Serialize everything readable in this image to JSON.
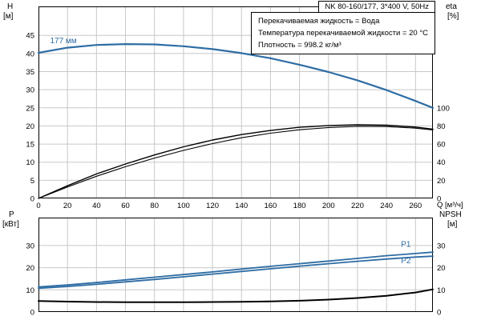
{
  "title_box": "NK 80-160/177, 3*400 V, 50Hz",
  "info_box": {
    "line1": "Перекачиваемая жидкость = Вода",
    "line2": "Температура перекачиваемой жидкости = 20 °C",
    "line3": "Плотность = 998.2 кг/м³"
  },
  "axes_labels": {
    "top_left_1": "H",
    "top_left_2": "[м]",
    "top_right_1": "eta",
    "top_right_2": "[%]",
    "x_label": "Q [м³/ч]",
    "bottom_left_1": "P",
    "bottom_left_2": "[кВт]",
    "bottom_right_1": "NPSH",
    "bottom_right_2": "[м]"
  },
  "colors": {
    "curve_blue": "#2e6da4",
    "curve_black": "#000000",
    "grid": "#c8c8c8",
    "axis": "#000000"
  },
  "chart_data": [
    {
      "type": "line",
      "title": "Q-H curve and efficiency",
      "xlabel": "Q [м³/ч]",
      "xlim": [
        0,
        272
      ],
      "x_ticks": [
        0,
        20,
        40,
        60,
        80,
        100,
        120,
        140,
        160,
        180,
        200,
        220,
        240,
        260
      ],
      "show_x_tick_labels": true,
      "grid": true,
      "y_left": {
        "name": "H [м]",
        "lim": [
          0,
          53
        ],
        "ticks": [
          0,
          5,
          10,
          15,
          20,
          25,
          30,
          35,
          40,
          45
        ]
      },
      "y_right": {
        "name": "eta [%]",
        "ticks": [
          0,
          20,
          40,
          60,
          80,
          100
        ],
        "to_left": 0.25
      },
      "x_points": [
        0,
        20,
        40,
        60,
        80,
        100,
        120,
        140,
        160,
        180,
        200,
        220,
        240,
        260,
        272
      ],
      "series": [
        {
          "name": "head-177mm",
          "axis": "left",
          "color": "blue",
          "width": 2.2,
          "y": [
            40.2,
            41.6,
            42.35,
            42.6,
            42.5,
            42.0,
            41.2,
            40.1,
            38.7,
            36.9,
            34.9,
            32.6,
            29.9,
            26.9,
            25.0
          ]
        },
        {
          "name": "eta-pump",
          "axis": "right",
          "color": "black",
          "width": 1.4,
          "y": [
            0,
            14,
            27,
            38,
            48,
            57,
            64.5,
            70.5,
            75,
            78.5,
            80.5,
            81.3,
            80.8,
            78.8,
            76.5
          ]
        },
        {
          "name": "eta-pump-motor",
          "axis": "right",
          "color": "black",
          "width": 1.1,
          "y": [
            0,
            12.5,
            24.5,
            35,
            44.5,
            53,
            60.5,
            67,
            72,
            75.8,
            78.3,
            79.5,
            79.3,
            77.6,
            75.5
          ]
        }
      ],
      "curve_labels": [
        {
          "text": "177 мм",
          "x": 8,
          "y": 42.8,
          "color": "blue"
        }
      ]
    },
    {
      "type": "line",
      "title": "Power and NPSH",
      "xlim": [
        0,
        272
      ],
      "x_ticks": [
        0,
        20,
        40,
        60,
        80,
        100,
        120,
        140,
        160,
        180,
        200,
        220,
        240,
        260
      ],
      "show_x_tick_labels": false,
      "grid": true,
      "y_left": {
        "name": "P [кВт]",
        "lim": [
          0,
          42.6
        ],
        "ticks": [
          0,
          10,
          20,
          30
        ]
      },
      "y_right": {
        "name": "NPSH [м]",
        "ticks": [
          0,
          10,
          20,
          30
        ],
        "to_left": 1
      },
      "x_points": [
        0,
        20,
        40,
        60,
        80,
        100,
        120,
        140,
        160,
        180,
        200,
        220,
        240,
        260,
        272
      ],
      "series": [
        {
          "name": "P1",
          "axis": "left",
          "color": "blue",
          "width": 1.8,
          "y": [
            11.3,
            12.2,
            13.3,
            14.5,
            15.7,
            16.9,
            18.1,
            19.4,
            20.6,
            21.8,
            23.0,
            24.2,
            25.4,
            26.4,
            27.0
          ]
        },
        {
          "name": "P2",
          "axis": "left",
          "color": "blue",
          "width": 1.8,
          "y": [
            10.7,
            11.5,
            12.5,
            13.6,
            14.7,
            15.9,
            17.1,
            18.3,
            19.5,
            20.7,
            21.8,
            22.9,
            23.9,
            24.8,
            25.2
          ]
        },
        {
          "name": "NPSH",
          "axis": "right",
          "color": "black",
          "width": 2.0,
          "y": [
            5.0,
            4.7,
            4.5,
            4.4,
            4.4,
            4.4,
            4.5,
            4.6,
            4.8,
            5.1,
            5.6,
            6.3,
            7.3,
            8.8,
            10.2
          ]
        }
      ],
      "curve_labels": [
        {
          "text": "P1",
          "x": 250,
          "y": 29.5,
          "color": "blue"
        },
        {
          "text": "P2",
          "x": 250,
          "y": 22.0,
          "color": "blue"
        }
      ]
    }
  ]
}
